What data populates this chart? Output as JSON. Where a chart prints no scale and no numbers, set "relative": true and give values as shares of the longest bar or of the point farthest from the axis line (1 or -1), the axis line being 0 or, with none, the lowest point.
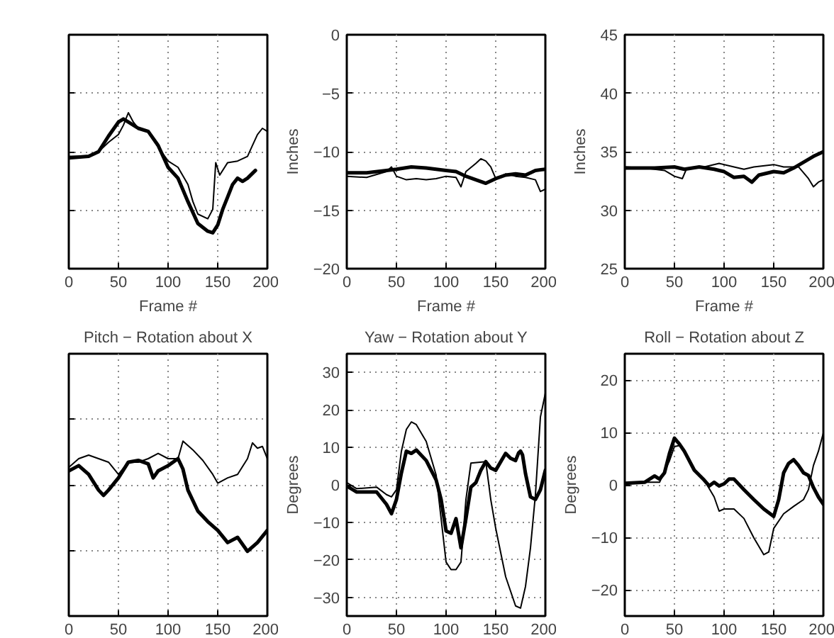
{
  "chart_data": [
    {
      "type": "line",
      "relative": true,
      "xlabel": "Frame #",
      "xlim": [
        0,
        200
      ],
      "xticks": [
        0,
        50,
        100,
        150,
        200
      ],
      "grid": true,
      "tick_labels": "x",
      "series": [
        {
          "color": "#000000",
          "x": [
            0,
            20,
            30,
            40,
            50,
            55,
            60,
            70,
            80,
            90,
            100,
            110,
            120,
            130,
            140,
            145,
            150,
            155,
            160,
            165,
            170,
            175,
            180,
            188
          ],
          "values": [
            0.71,
            0.72,
            0.75,
            0.85,
            0.94,
            0.96,
            0.94,
            0.9,
            0.88,
            0.79,
            0.65,
            0.58,
            0.43,
            0.29,
            0.24,
            0.23,
            0.28,
            0.38,
            0.46,
            0.54,
            0.58,
            0.56,
            0.58,
            0.63
          ]
        },
        {
          "color": "#000000",
          "x": [
            0,
            20,
            30,
            40,
            50,
            55,
            60,
            65,
            70,
            80,
            90,
            100,
            110,
            120,
            125,
            130,
            140,
            145,
            148,
            152,
            160,
            170,
            180,
            185,
            190,
            195,
            200
          ],
          "values": [
            0.72,
            0.72,
            0.75,
            0.81,
            0.86,
            0.92,
            1,
            0.94,
            0.9,
            0.88,
            0.78,
            0.69,
            0.65,
            0.54,
            0.43,
            0.35,
            0.32,
            0.38,
            0.68,
            0.6,
            0.68,
            0.69,
            0.72,
            0.79,
            0.86,
            0.9,
            0.88
          ]
        }
      ]
    },
    {
      "type": "line",
      "xlabel": "Frame #",
      "ylabel": "Inches",
      "xlim": [
        0,
        200
      ],
      "xticks": [
        0,
        50,
        100,
        150,
        200
      ],
      "ylim": [
        -20,
        0
      ],
      "yticks": [
        -20,
        -15,
        -10,
        -5,
        0
      ],
      "grid": true,
      "series": [
        {
          "color": "#000000",
          "x": [
            0,
            20,
            40,
            50,
            65,
            80,
            100,
            110,
            120,
            130,
            140,
            150,
            160,
            170,
            180,
            190,
            200
          ],
          "values": [
            -11.8,
            -11.8,
            -11.6,
            -11.5,
            -11.3,
            -11.4,
            -11.6,
            -11.7,
            -12.1,
            -12.4,
            -12.7,
            -12.3,
            -12.0,
            -11.9,
            -12.0,
            -11.6,
            -11.5
          ]
        },
        {
          "color": "#000000",
          "x": [
            0,
            20,
            40,
            45,
            50,
            60,
            70,
            80,
            90,
            100,
            110,
            115,
            120,
            130,
            135,
            140,
            145,
            150,
            160,
            170,
            180,
            190,
            195,
            200
          ],
          "values": [
            -12.1,
            -12.2,
            -11.7,
            -11.3,
            -12.1,
            -12.4,
            -12.3,
            -12.4,
            -12.3,
            -12.1,
            -12.2,
            -13.0,
            -11.7,
            -11.0,
            -10.6,
            -10.8,
            -11.3,
            -12.3,
            -11.9,
            -12.1,
            -12.2,
            -12.4,
            -13.4,
            -13.2
          ]
        }
      ]
    },
    {
      "type": "line",
      "xlabel": "Frame #",
      "ylabel": "Inches",
      "xlim": [
        0,
        200
      ],
      "xticks": [
        0,
        50,
        100,
        150,
        200
      ],
      "ylim": [
        25,
        45
      ],
      "yticks": [
        25,
        30,
        35,
        40,
        45
      ],
      "grid": true,
      "series": [
        {
          "color": "#000000",
          "x": [
            0,
            30,
            50,
            60,
            75,
            90,
            100,
            110,
            120,
            128,
            135,
            150,
            160,
            170,
            180,
            190,
            200
          ],
          "values": [
            33.6,
            33.6,
            33.7,
            33.5,
            33.7,
            33.5,
            33.3,
            32.8,
            32.9,
            32.4,
            33.0,
            33.3,
            33.2,
            33.6,
            34.1,
            34.6,
            35.0
          ]
        },
        {
          "color": "#000000",
          "x": [
            0,
            20,
            40,
            50,
            58,
            62,
            80,
            95,
            110,
            120,
            130,
            150,
            160,
            175,
            185,
            190,
            195,
            200
          ],
          "values": [
            33.7,
            33.6,
            33.4,
            32.9,
            32.7,
            33.5,
            33.7,
            34.0,
            33.7,
            33.5,
            33.7,
            33.9,
            33.7,
            33.7,
            32.7,
            32.0,
            32.4,
            32.6
          ]
        }
      ]
    },
    {
      "type": "line",
      "title": "Pitch − Rotation about X",
      "relative": true,
      "xlim": [
        0,
        200
      ],
      "xticks": [
        0,
        50,
        100,
        150,
        200
      ],
      "grid": true,
      "tick_labels": "x",
      "series": [
        {
          "color": "#000000",
          "x": [
            0,
            10,
            20,
            30,
            35,
            40,
            50,
            60,
            70,
            80,
            85,
            90,
            100,
            110,
            115,
            120,
            130,
            140,
            150,
            160,
            170,
            180,
            190,
            200
          ],
          "values": [
            0.83,
            0.86,
            0.81,
            0.72,
            0.69,
            0.72,
            0.79,
            0.88,
            0.89,
            0.87,
            0.79,
            0.83,
            0.86,
            0.9,
            0.84,
            0.72,
            0.6,
            0.54,
            0.49,
            0.42,
            0.45,
            0.37,
            0.42,
            0.49
          ]
        },
        {
          "color": "#000000",
          "x": [
            0,
            10,
            20,
            30,
            40,
            50,
            60,
            70,
            80,
            90,
            100,
            110,
            115,
            125,
            135,
            145,
            150,
            160,
            170,
            180,
            185,
            190,
            195,
            200
          ],
          "values": [
            0.85,
            0.9,
            0.92,
            0.9,
            0.88,
            0.81,
            0.88,
            0.88,
            0.9,
            0.93,
            0.9,
            0.9,
            1,
            0.95,
            0.89,
            0.81,
            0.76,
            0.79,
            0.81,
            0.9,
            0.99,
            0.96,
            0.97,
            0.9
          ]
        }
      ]
    },
    {
      "type": "line",
      "title": "Yaw − Rotation about Y",
      "ylabel": "Degrees",
      "xlim": [
        0,
        200
      ],
      "xticks": [
        0,
        50,
        100,
        150,
        200
      ],
      "ylim": [
        -35,
        35
      ],
      "yticks": [
        -30,
        -20,
        -10,
        0,
        10,
        20,
        30
      ],
      "grid": true,
      "series": [
        {
          "color": "#000000",
          "x": [
            0,
            10,
            30,
            40,
            45,
            50,
            55,
            60,
            65,
            70,
            80,
            90,
            95,
            100,
            105,
            110,
            115,
            120,
            125,
            130,
            135,
            140,
            145,
            150,
            160,
            165,
            170,
            173,
            175,
            177,
            180,
            185,
            190,
            195,
            200
          ],
          "values": [
            -0.3,
            -1.9,
            -1.9,
            -5.2,
            -7.7,
            -3.9,
            3.2,
            9.0,
            8.4,
            9.3,
            6.5,
            1.3,
            -3.9,
            -12.3,
            -12.9,
            -9.0,
            -16.8,
            -9.0,
            -0.6,
            0.6,
            3.9,
            6.2,
            4.5,
            3.9,
            8.4,
            7.1,
            6.5,
            8.5,
            9.0,
            8.0,
            3.0,
            -3.2,
            -3.9,
            -1.3,
            3.9
          ]
        },
        {
          "color": "#000000",
          "x": [
            0,
            10,
            30,
            40,
            45,
            50,
            55,
            60,
            65,
            70,
            80,
            90,
            95,
            100,
            105,
            110,
            115,
            120,
            125,
            140,
            145,
            150,
            160,
            170,
            175,
            180,
            185,
            190,
            195,
            200
          ],
          "values": [
            0.6,
            -1.0,
            -0.6,
            -2.6,
            -3.2,
            -1.3,
            9.0,
            14.8,
            16.8,
            16.1,
            11.6,
            2.6,
            -9.0,
            -20.6,
            -22.6,
            -22.6,
            -20.6,
            -3.9,
            5.8,
            6.2,
            -3.9,
            -11.6,
            -24.5,
            -32.3,
            -32.9,
            -27.1,
            -16.8,
            -2.6,
            18.1,
            24.5
          ]
        }
      ]
    },
    {
      "type": "line",
      "title": "Roll − Rotation about Z",
      "ylabel": "Degrees",
      "xlim": [
        0,
        200
      ],
      "xticks": [
        0,
        50,
        100,
        150,
        200
      ],
      "ylim": [
        -25,
        25
      ],
      "yticks": [
        -20,
        -10,
        0,
        10,
        20
      ],
      "grid": true,
      "series": [
        {
          "color": "#000000",
          "x": [
            0,
            20,
            30,
            35,
            40,
            45,
            50,
            55,
            60,
            70,
            80,
            85,
            90,
            95,
            100,
            105,
            110,
            120,
            130,
            140,
            150,
            155,
            160,
            165,
            170,
            175,
            180,
            185,
            190,
            195,
            200
          ],
          "values": [
            0.3,
            0.5,
            1.7,
            1.1,
            2.3,
            6.0,
            8.9,
            7.8,
            6.4,
            2.8,
            0.9,
            -0.2,
            0.5,
            -0.2,
            0.2,
            1.1,
            1.1,
            -0.9,
            -2.8,
            -4.6,
            -6.0,
            -2.8,
            2.3,
            4.1,
            4.8,
            3.7,
            2.3,
            1.8,
            -0.5,
            -2.3,
            -3.7
          ]
        },
        {
          "color": "#000000",
          "x": [
            0,
            20,
            35,
            45,
            50,
            55,
            60,
            70,
            80,
            90,
            95,
            100,
            110,
            120,
            130,
            140,
            145,
            150,
            160,
            170,
            180,
            185,
            190,
            195,
            200
          ],
          "values": [
            0.2,
            0.5,
            0.5,
            4.6,
            7.3,
            7.5,
            6.4,
            2.8,
            0.9,
            -2.3,
            -5.0,
            -4.6,
            -4.6,
            -6.4,
            -10.1,
            -13.3,
            -12.8,
            -8.3,
            -5.5,
            -4.1,
            -2.8,
            -0.9,
            3.7,
            6.4,
            9.9
          ]
        }
      ]
    }
  ]
}
